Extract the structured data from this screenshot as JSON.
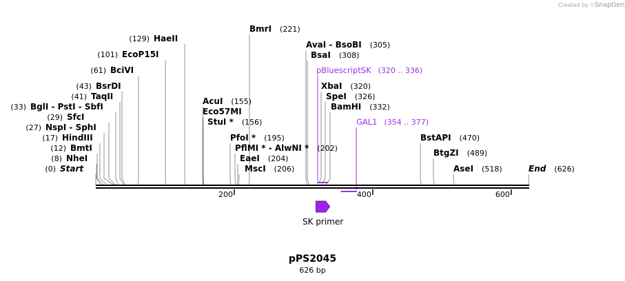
{
  "plasmid": {
    "name": "pPS2045",
    "length_label": "626 bp"
  },
  "watermark": {
    "prefix": "Created by",
    "brand": "SnapGene"
  },
  "axis": {
    "ticks": [
      {
        "value": 200,
        "label": "200"
      },
      {
        "value": 400,
        "label": "400"
      },
      {
        "value": 600,
        "label": "600"
      }
    ]
  },
  "colors": {
    "enzyme": "#000000",
    "site_line": "#777777",
    "feature": "#9b30e8",
    "primer": "#a020f0"
  },
  "sites": [
    {
      "name": "Start",
      "pos": "(0)",
      "bp": 0,
      "italic": true
    },
    {
      "name": "NheI",
      "pos": "(8)",
      "bp": 8
    },
    {
      "name": "BmtI",
      "pos": "(12)",
      "bp": 12
    },
    {
      "name": "HindIII",
      "pos": "(17)",
      "bp": 17
    },
    {
      "name": "NspI - SphI",
      "pos": "(27)",
      "bp": 27
    },
    {
      "name": "SfcI",
      "pos": "(29)",
      "bp": 29
    },
    {
      "name": "BglI - PstI - SbfI",
      "pos": "(33)",
      "bp": 33
    },
    {
      "name": "TaqII",
      "pos": "(41)",
      "bp": 41
    },
    {
      "name": "BsrDI",
      "pos": "(43)",
      "bp": 43
    },
    {
      "name": "BciVI",
      "pos": "(61)",
      "bp": 61
    },
    {
      "name": "EcoP15I",
      "pos": "(101)",
      "bp": 101
    },
    {
      "name": "HaeII",
      "pos": "(129)",
      "bp": 129
    },
    {
      "name": "AcuI",
      "pos": "(155)",
      "bp": 155
    },
    {
      "name": "Eco57MI",
      "pos": "",
      "bp": 155
    },
    {
      "name": "StuI *",
      "pos": "(156)",
      "bp": 156
    },
    {
      "name": "PfoI *",
      "pos": "(195)",
      "bp": 195
    },
    {
      "name": "PflMI * - AlwNI *",
      "pos": "(202)",
      "bp": 202
    },
    {
      "name": "EaeI",
      "pos": "(204)",
      "bp": 204
    },
    {
      "name": "MscI",
      "pos": "(206)",
      "bp": 206
    },
    {
      "name": "BmrI",
      "pos": "(221)",
      "bp": 221
    },
    {
      "name": "AvaI - BsoBI",
      "pos": "(305)",
      "bp": 305
    },
    {
      "name": "BsaI",
      "pos": "(308)",
      "bp": 308
    },
    {
      "name": "XbaI",
      "pos": "(320)",
      "bp": 320
    },
    {
      "name": "SpeI",
      "pos": "(326)",
      "bp": 326
    },
    {
      "name": "BamHI",
      "pos": "(332)",
      "bp": 332
    },
    {
      "name": "BstAPI",
      "pos": "(470)",
      "bp": 470
    },
    {
      "name": "BtgZI",
      "pos": "(489)",
      "bp": 489
    },
    {
      "name": "AseI",
      "pos": "(518)",
      "bp": 518
    },
    {
      "name": "End",
      "pos": "(626)",
      "bp": 626,
      "italic": true
    }
  ],
  "features": [
    {
      "name": "pBluescriptSK",
      "range": "(320 .. 336)",
      "start": 320,
      "end": 336
    },
    {
      "name": "GAL1",
      "range": "(354 .. 377)",
      "start": 354,
      "end": 377
    }
  ],
  "primers": [
    {
      "name": "SK primer",
      "start": 320,
      "end": 336,
      "direction": "forward"
    }
  ]
}
